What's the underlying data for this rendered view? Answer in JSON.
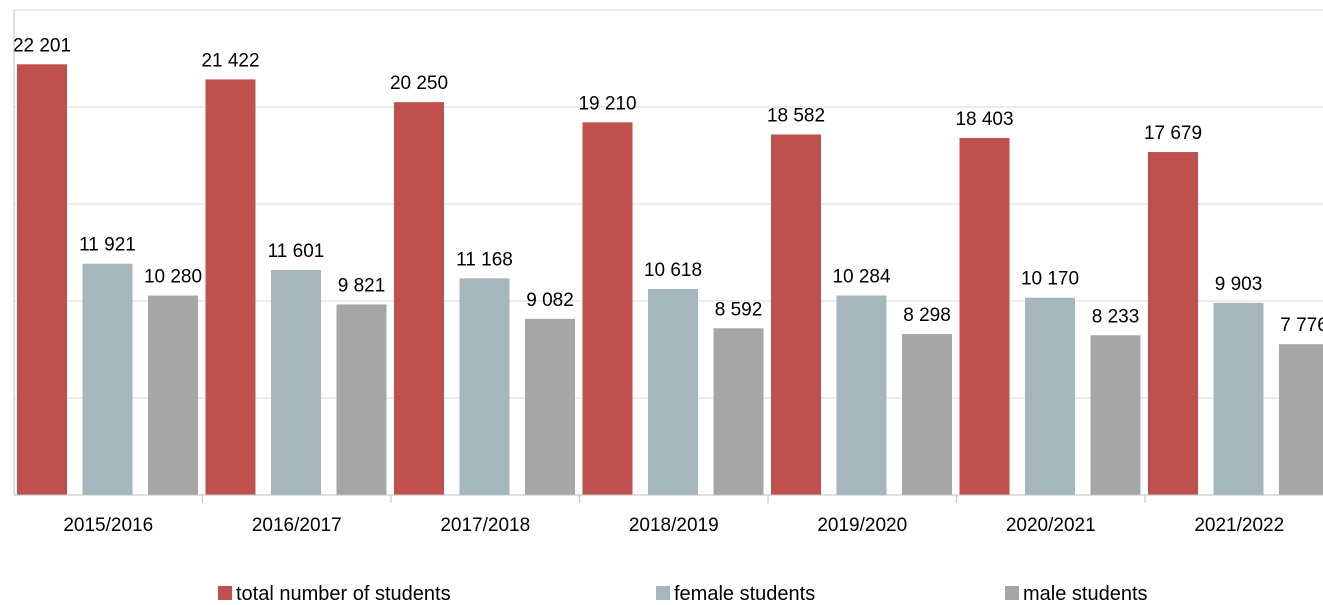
{
  "chart_data": {
    "type": "bar",
    "categories": [
      "2015/2016",
      "2016/2017",
      "2017/2018",
      "2018/2019",
      "2019/2020",
      "2020/2021",
      "2021/2022"
    ],
    "series": [
      {
        "name": "total number of students",
        "color": "#c0504d",
        "values": [
          22201,
          21422,
          20250,
          19210,
          18582,
          18403,
          17679
        ],
        "labels": [
          "22 201",
          "21 422",
          "20 250",
          "19 210",
          "18 582",
          "18 403",
          "17 679"
        ]
      },
      {
        "name": "female students",
        "color": "#a5b6bd",
        "values": [
          11921,
          11601,
          11168,
          10618,
          10284,
          10170,
          9903
        ],
        "labels": [
          "11 921",
          "11 601",
          "11 168",
          "10 618",
          "10 284",
          "10 170",
          "9 903"
        ]
      },
      {
        "name": "male students",
        "color": "#a6a6a6",
        "values": [
          10280,
          9821,
          9082,
          8592,
          8298,
          8233,
          7776
        ],
        "labels": [
          "10 280",
          "9 821",
          "9 082",
          "8 592",
          "8 298",
          "8 233",
          "7 776"
        ]
      }
    ],
    "ylim": [
      0,
      25000
    ],
    "grid": true,
    "legend": "bottom"
  }
}
